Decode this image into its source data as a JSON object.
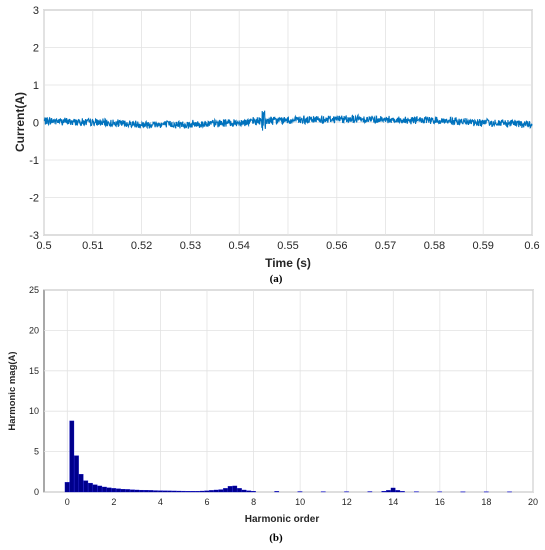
{
  "captions": {
    "a": "(a)",
    "b": "(b)"
  },
  "chart_data": [
    {
      "type": "line",
      "xlabel": "Time (s)",
      "ylabel": "Current(A)",
      "xlim": [
        0.5,
        0.6
      ],
      "ylim": [
        -3,
        3
      ],
      "xticks": [
        "0.5",
        "0.51",
        "0.52",
        "0.53",
        "0.54",
        "0.55",
        "0.56",
        "0.57",
        "0.58",
        "0.59",
        "0.6"
      ],
      "yticks": [
        "-3",
        "-2",
        "-1",
        "0",
        "1",
        "2",
        "3"
      ],
      "grid": true,
      "color": "#0072BD",
      "series": [
        {
          "x": [
            0.5,
            0.51,
            0.52,
            0.53,
            0.54,
            0.545,
            0.55,
            0.56,
            0.57,
            0.58,
            0.59,
            0.6
          ],
          "y": [
            0.05,
            0.0,
            -0.05,
            -0.05,
            0.0,
            0.05,
            0.05,
            0.1,
            0.08,
            0.05,
            0.0,
            -0.05
          ],
          "band": 0.12
        }
      ]
    },
    {
      "type": "bar",
      "xlabel": "Harmonic order",
      "ylabel": "Harmonic mag(A)",
      "xlim": [
        -1,
        20
      ],
      "ylim": [
        0,
        25
      ],
      "xticks": [
        "0",
        "2",
        "4",
        "6",
        "8",
        "10",
        "12",
        "14",
        "16",
        "18",
        "20"
      ],
      "yticks": [
        "0",
        "5",
        "10",
        "15",
        "20",
        "25"
      ],
      "grid": true,
      "color": "#00008B",
      "bar_width": 0.2,
      "x": [
        0,
        0.2,
        0.4,
        0.6,
        0.8,
        1.0,
        1.2,
        1.4,
        1.6,
        1.8,
        2.0,
        2.2,
        2.4,
        2.6,
        2.8,
        3.0,
        3.2,
        3.4,
        3.6,
        3.8,
        4.0,
        4.2,
        4.4,
        4.6,
        4.8,
        5.0,
        5.2,
        5.4,
        5.6,
        5.8,
        6.0,
        6.2,
        6.4,
        6.6,
        6.8,
        7.0,
        7.2,
        7.4,
        7.6,
        7.8,
        8.0,
        9.0,
        10.0,
        11.0,
        12.0,
        13.0,
        13.6,
        13.8,
        14.0,
        14.2,
        14.4,
        15.0,
        16.0,
        17.0,
        18.0,
        19.0
      ],
      "values": [
        1.2,
        8.8,
        4.5,
        2.2,
        1.4,
        1.1,
        0.9,
        0.75,
        0.62,
        0.52,
        0.45,
        0.4,
        0.35,
        0.32,
        0.28,
        0.25,
        0.23,
        0.22,
        0.2,
        0.18,
        0.17,
        0.15,
        0.14,
        0.13,
        0.12,
        0.11,
        0.1,
        0.1,
        0.1,
        0.12,
        0.15,
        0.2,
        0.25,
        0.3,
        0.45,
        0.7,
        0.75,
        0.45,
        0.25,
        0.15,
        0.1,
        0.08,
        0.06,
        0.05,
        0.05,
        0.06,
        0.1,
        0.2,
        0.5,
        0.2,
        0.08,
        0.05,
        0.04,
        0.03,
        0.03,
        0.03
      ]
    }
  ]
}
